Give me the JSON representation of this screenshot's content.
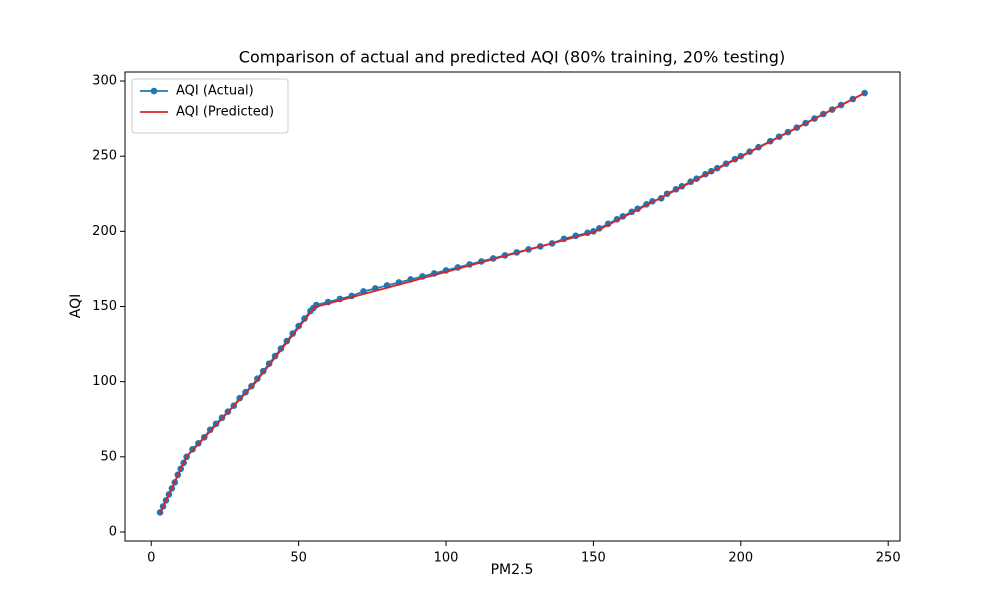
{
  "chart_data": {
    "type": "line",
    "title": "Comparison of actual and predicted AQI (80% training, 20% testing)",
    "xlabel": "PM2.5",
    "ylabel": "AQI",
    "xlim": [
      -8.9,
      254
    ],
    "ylim": [
      -6,
      306
    ],
    "xticks": [
      0,
      50,
      100,
      150,
      200,
      250
    ],
    "yticks": [
      0,
      50,
      100,
      150,
      200,
      250,
      300
    ],
    "legend": "upper left",
    "series": [
      {
        "name": "AQI (Actual)",
        "color": "#1f77b4",
        "marker": true,
        "x": [
          3,
          4,
          5,
          6,
          7,
          8,
          9,
          10,
          11,
          12,
          14,
          16,
          18,
          20,
          22,
          24,
          26,
          28,
          30,
          32,
          34,
          36,
          38,
          40,
          42,
          44,
          46,
          48,
          50,
          52,
          54,
          55,
          56,
          60,
          64,
          68,
          72,
          76,
          80,
          84,
          88,
          92,
          96,
          100,
          104,
          108,
          112,
          116,
          120,
          124,
          128,
          132,
          136,
          140,
          144,
          148,
          150,
          152,
          155,
          158,
          160,
          163,
          165,
          168,
          170,
          173,
          175,
          178,
          180,
          183,
          185,
          188,
          190,
          192,
          195,
          198,
          200,
          203,
          206,
          210,
          213,
          216,
          219,
          222,
          225,
          228,
          231,
          234,
          238,
          242
        ],
        "values": [
          13,
          17,
          21,
          25,
          29,
          33,
          38,
          42,
          46,
          50,
          55,
          59,
          63,
          68,
          72,
          76,
          80,
          84,
          89,
          93,
          97,
          102,
          107,
          112,
          117,
          122,
          127,
          132,
          137,
          142,
          147,
          149,
          151,
          153,
          155,
          157,
          160,
          162,
          164,
          166,
          168,
          170,
          172,
          174,
          176,
          178,
          180,
          182,
          184,
          186,
          188,
          190,
          192,
          195,
          197,
          199,
          200,
          202,
          205,
          208,
          210,
          213,
          215,
          218,
          220,
          222,
          225,
          228,
          230,
          233,
          235,
          238,
          240,
          242,
          245,
          248,
          250,
          253,
          256,
          260,
          263,
          266,
          269,
          272,
          275,
          278,
          281,
          284,
          288,
          292
        ]
      },
      {
        "name": "AQI (Predicted)",
        "color": "#d62728",
        "marker": false,
        "x": [
          3,
          12,
          35.4,
          55.4,
          150.4,
          242
        ],
        "values": [
          12.5,
          50,
          99.5,
          149.5,
          199.6,
          292
        ]
      }
    ]
  }
}
